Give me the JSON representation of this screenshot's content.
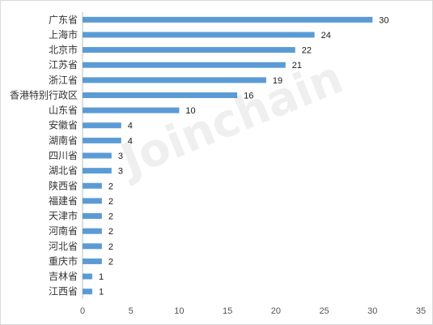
{
  "watermark": "Joinchain",
  "colors": {
    "bar": "#5b9bd5",
    "axis": "#bfbfbf"
  },
  "chart_data": {
    "type": "bar",
    "orientation": "horizontal",
    "categories": [
      "广东省",
      "上海市",
      "北京市",
      "江苏省",
      "浙江省",
      "香港特别行政区",
      "山东省",
      "安徽省",
      "湖南省",
      "四川省",
      "湖北省",
      "陕西省",
      "福建省",
      "天津市",
      "河南省",
      "河北省",
      "重庆市",
      "吉林省",
      "江西省"
    ],
    "values": [
      30,
      24,
      22,
      21,
      19,
      16,
      10,
      4,
      4,
      3,
      3,
      2,
      2,
      2,
      2,
      2,
      2,
      1,
      1
    ],
    "xlim": [
      0,
      35
    ],
    "xticks": [
      0,
      5,
      10,
      15,
      20,
      25,
      30,
      35
    ],
    "grid": false,
    "legend": "none"
  }
}
